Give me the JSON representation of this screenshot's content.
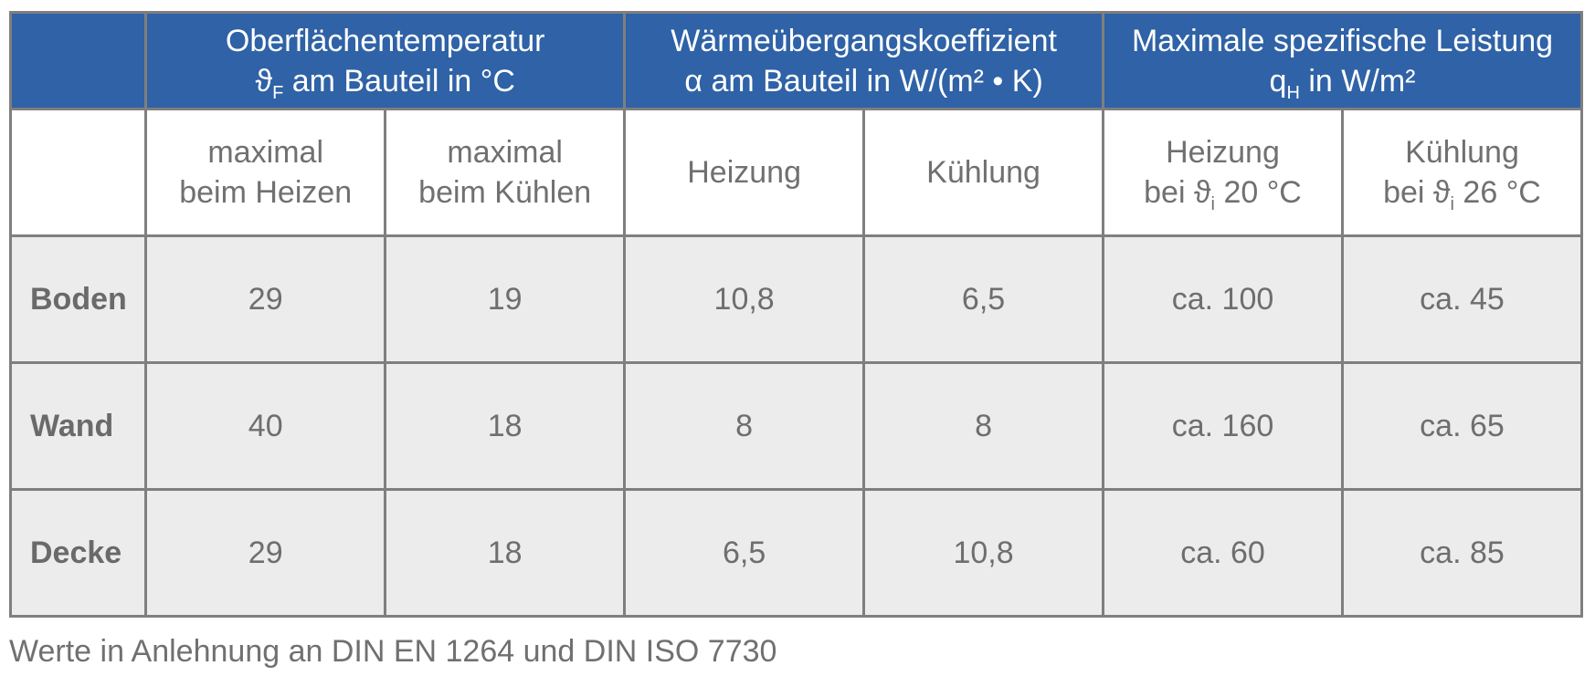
{
  "table": {
    "groups": [
      {
        "line1": "Oberflächentemperatur",
        "line2_pre": "ϑ",
        "line2_sub": "F",
        "line2_post": " am Bauteil in °C"
      },
      {
        "line1": "Wärmeübergangskoeffizient",
        "line2": "α am Bauteil in W/(m² • K)"
      },
      {
        "line1": "Maximale spezifische Leistung",
        "line2_pre": "q",
        "line2_sub": "H",
        "line2_post": " in W/m²"
      }
    ],
    "subheaders": [
      {
        "line1": "maximal",
        "line2": "beim Heizen"
      },
      {
        "line1": "maximal",
        "line2": "beim Kühlen"
      },
      {
        "line1": "Heizung"
      },
      {
        "line1": "Kühlung"
      },
      {
        "line1": "Heizung",
        "line2_pre": "bei ϑ",
        "line2_sub": "i",
        "line2_post": " 20 °C"
      },
      {
        "line1": "Kühlung",
        "line2_pre": "bei ϑ",
        "line2_sub": "i",
        "line2_post": " 26 °C"
      }
    ],
    "rows": [
      {
        "label": "Boden",
        "cells": [
          "29",
          "19",
          "10,8",
          "6,5",
          "ca. 100",
          "ca. 45"
        ]
      },
      {
        "label": "Wand",
        "cells": [
          "40",
          "18",
          "8",
          "8",
          "ca. 160",
          "ca. 65"
        ]
      },
      {
        "label": "Decke",
        "cells": [
          "29",
          "18",
          "6,5",
          "10,8",
          "ca. 60",
          "ca. 85"
        ]
      }
    ]
  },
  "footnote": "Werte in Anlehnung an DIN EN 1264 und DIN ISO 7730",
  "colors": {
    "header_bg": "#2f62a6",
    "row_bg": "#ececec",
    "border": "#7f7f7f",
    "text": "#707070"
  }
}
